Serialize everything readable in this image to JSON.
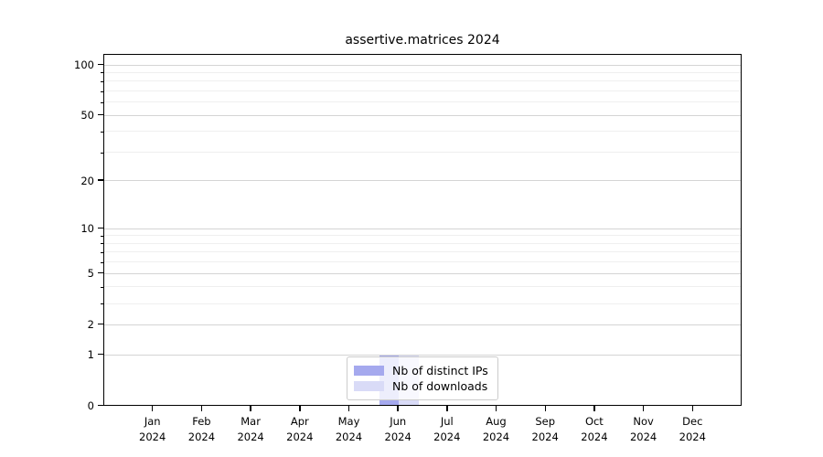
{
  "title": "assertive.matrices 2024",
  "chart_data": {
    "type": "bar",
    "title": "assertive.matrices 2024",
    "categories": [
      "Jan 2024",
      "Feb 2024",
      "Mar 2024",
      "Apr 2024",
      "May 2024",
      "Jun 2024",
      "Jul 2024",
      "Aug 2024",
      "Sep 2024",
      "Oct 2024",
      "Nov 2024",
      "Dec 2024"
    ],
    "x_tick_lines": [
      [
        "Jan",
        "2024"
      ],
      [
        "Feb",
        "2024"
      ],
      [
        "Mar",
        "2024"
      ],
      [
        "Apr",
        "2024"
      ],
      [
        "May",
        "2024"
      ],
      [
        "Jun",
        "2024"
      ],
      [
        "Jul",
        "2024"
      ],
      [
        "Aug",
        "2024"
      ],
      [
        "Sep",
        "2024"
      ],
      [
        "Oct",
        "2024"
      ],
      [
        "Nov",
        "2024"
      ],
      [
        "Dec",
        "2024"
      ]
    ],
    "series": [
      {
        "name": "Nb of distinct IPs",
        "color": "#a5a9ee",
        "values": [
          0,
          0,
          0,
          0,
          0,
          1,
          0,
          0,
          0,
          0,
          0,
          0
        ]
      },
      {
        "name": "Nb of downloads",
        "color": "#d9dbf7",
        "values": [
          0,
          0,
          0,
          0,
          0,
          1,
          0,
          0,
          0,
          0,
          0,
          0
        ]
      }
    ],
    "y_scale": "log10(1+x)",
    "y_major_ticks": [
      0,
      1,
      2,
      5,
      10,
      20,
      50,
      100
    ],
    "y_minor_ticks": [
      3,
      4,
      6,
      7,
      8,
      9,
      30,
      40,
      60,
      70,
      80,
      90
    ],
    "ylim": [
      0,
      101
    ],
    "xlabel": "",
    "ylabel": "",
    "grid": true,
    "legend_position": "lower center"
  },
  "colors": {
    "background": "#ffffff",
    "spine": "#000000",
    "grid_major": "#d4d4d4",
    "grid_minor": "#efefef",
    "bar_distinct_ips": "#a5a9ee",
    "bar_downloads": "#d9dbf7",
    "legend_border": "#cccccc"
  }
}
